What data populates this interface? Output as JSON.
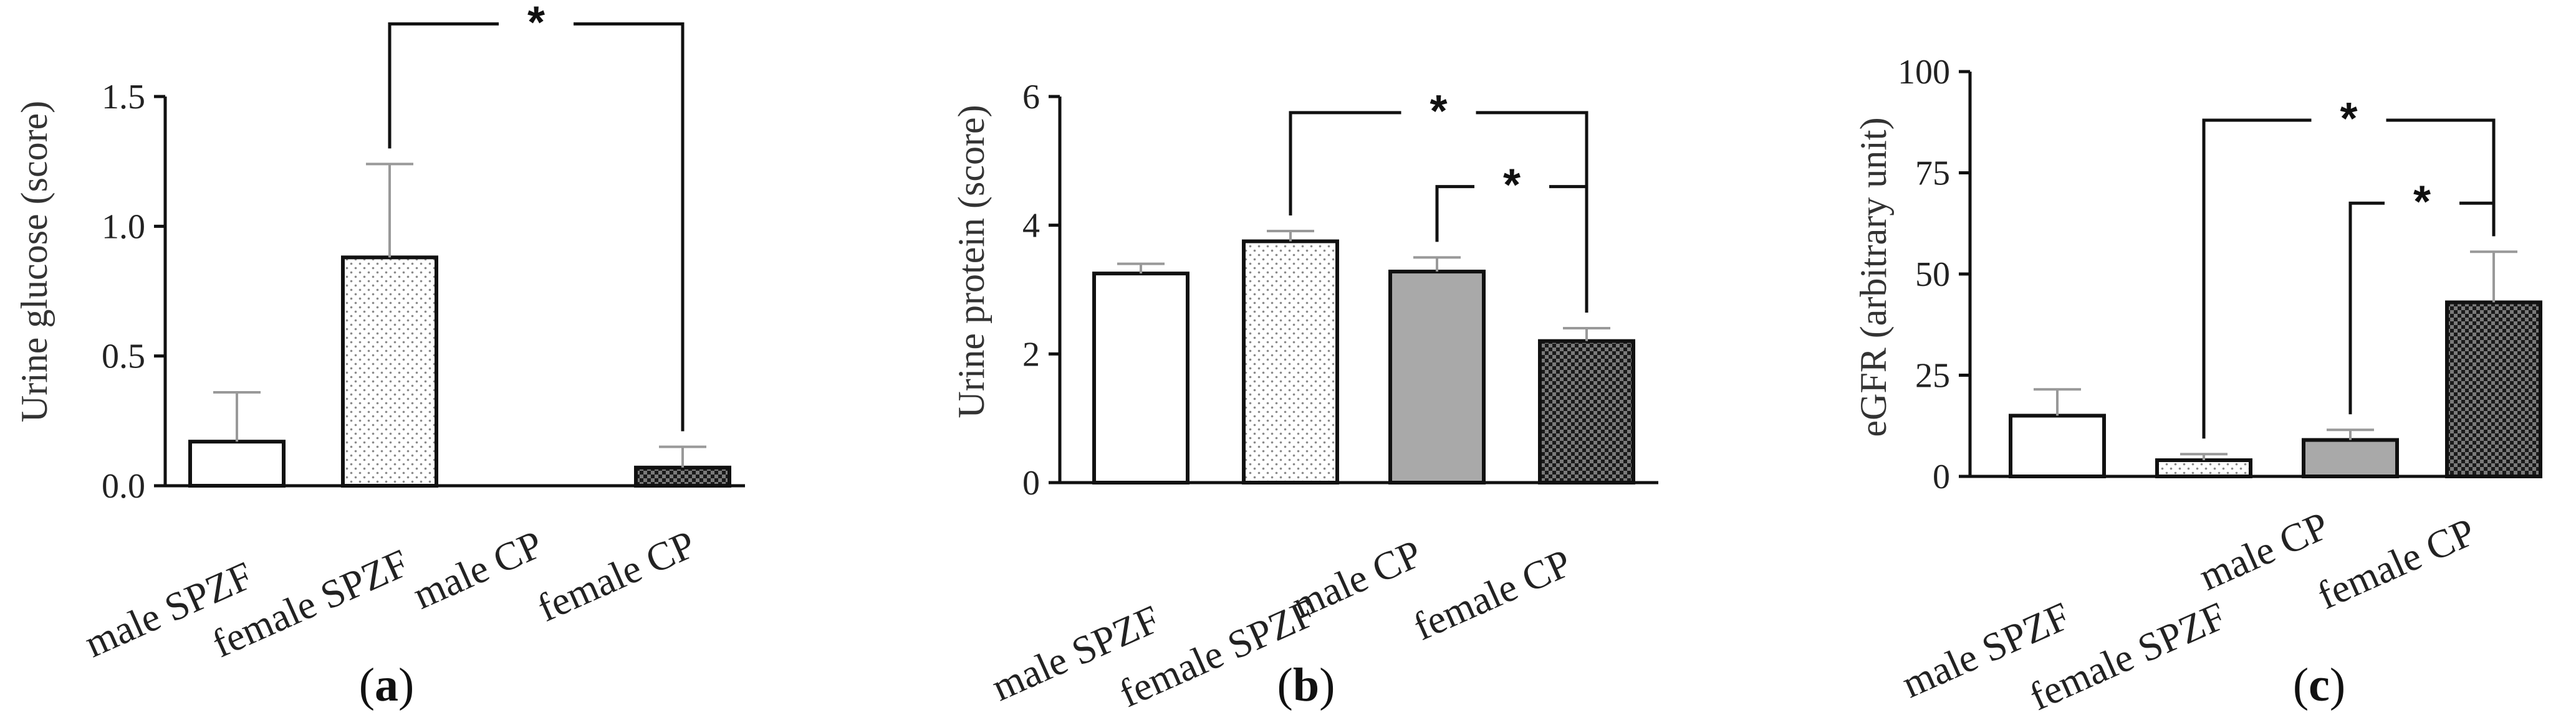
{
  "chart_data": [
    {
      "id": "a",
      "type": "bar",
      "panel_label": "a",
      "title": "",
      "xlabel": "",
      "ylabel": "Urine glucose (score)",
      "ylim": [
        0,
        1.5
      ],
      "yticks": [
        0.0,
        0.5,
        1.0,
        1.5
      ],
      "ytick_labels": [
        "0.0",
        "0.5",
        "1.0",
        "1.5"
      ],
      "categories": [
        "male SPZF",
        "female SPZF",
        "male CP",
        "female CP"
      ],
      "values": [
        0.17,
        0.88,
        0.0,
        0.07
      ],
      "errors": [
        0.19,
        0.36,
        0.0,
        0.08
      ],
      "fills": [
        "white",
        "dots",
        "white",
        "checker"
      ],
      "significance": [
        {
          "from": 1,
          "to": 3,
          "label": "*",
          "level": 1.78
        }
      ]
    },
    {
      "id": "b",
      "type": "bar",
      "panel_label": "b",
      "title": "",
      "xlabel": "",
      "ylabel": "Urine protein (score)",
      "ylim": [
        0,
        6
      ],
      "yticks": [
        0,
        2,
        4,
        6
      ],
      "ytick_labels": [
        "0",
        "2",
        "4",
        "6"
      ],
      "categories": [
        "male SPZF",
        "female SPZF",
        "male CP",
        "female CP"
      ],
      "values": [
        3.25,
        3.75,
        3.28,
        2.2
      ],
      "errors": [
        0.15,
        0.16,
        0.22,
        0.2
      ],
      "fills": [
        "white",
        "dots",
        "gray",
        "checker"
      ],
      "significance": [
        {
          "from": 1,
          "to": 3,
          "label": "*",
          "level": 5.75
        },
        {
          "from": 2,
          "to": 3,
          "label": "*",
          "level": 4.6
        }
      ]
    },
    {
      "id": "c",
      "type": "bar",
      "panel_label": "c",
      "title": "",
      "xlabel": "",
      "ylabel": "eGFR (arbitrary unit)",
      "ylim": [
        0,
        100
      ],
      "yticks": [
        0,
        25,
        50,
        75,
        100
      ],
      "ytick_labels": [
        "0",
        "25",
        "50",
        "75",
        "100"
      ],
      "categories": [
        "male SPZF",
        "female SPZF",
        "male CP",
        "female CP"
      ],
      "values": [
        15,
        4,
        9,
        43
      ],
      "errors": [
        6.5,
        1.5,
        2.5,
        12.5
      ],
      "fills": [
        "white",
        "dots",
        "gray",
        "checker"
      ],
      "significance": [
        {
          "from": 1,
          "to": 3,
          "label": "*",
          "level": 88
        },
        {
          "from": 2,
          "to": 3,
          "label": "*",
          "level": 67.5
        }
      ]
    }
  ],
  "colors": {
    "axis": "#111111",
    "gray_fill": "#a9a9a9",
    "white_fill": "#ffffff",
    "error_bar": "#999999"
  }
}
